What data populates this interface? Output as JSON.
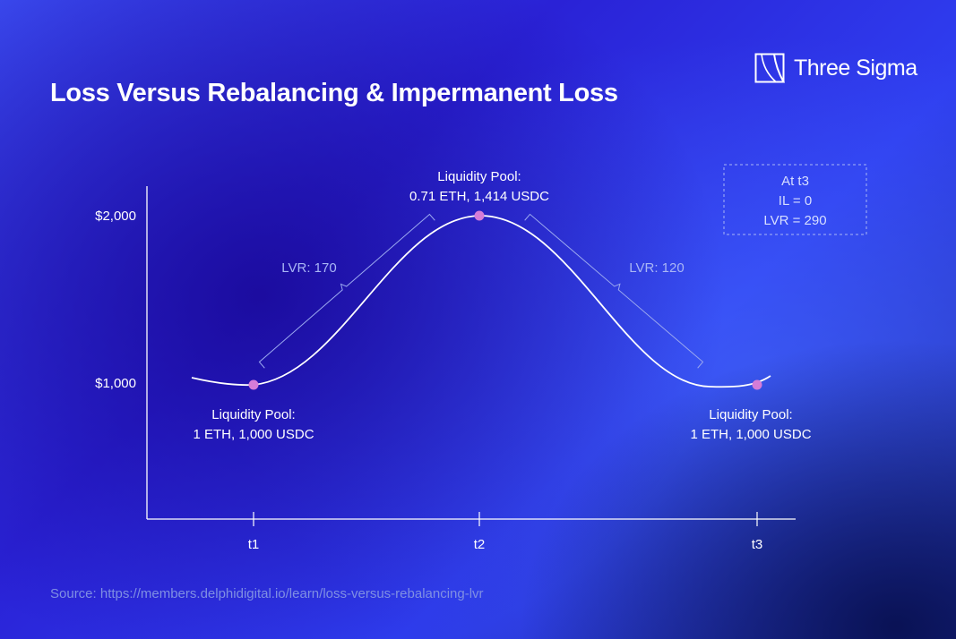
{
  "brand": {
    "name": "Three Sigma",
    "logo_icon": "three-sigma-logo-icon"
  },
  "source_text": "Source: https://members.delphidigital.io/learn/loss-versus-rebalancing-lvr",
  "colors": {
    "curve": "#ffffff",
    "point": "#d57cd8",
    "bracket": "#9aa7ef",
    "note_border": "#a9b6f5"
  },
  "chart_data": {
    "type": "line",
    "title": "Loss Versus Rebalancing & Impermanent Loss",
    "xlabel": "",
    "ylabel": "",
    "grid": false,
    "x_categories": [
      "t1",
      "t2",
      "t3"
    ],
    "y_ticks": [
      {
        "value": 1000,
        "label": "$1,000"
      },
      {
        "value": 2000,
        "label": "$2,000"
      }
    ],
    "series": [
      {
        "points": [
          {
            "x": "t1",
            "y": 1000
          },
          {
            "x": "t2",
            "y": 2000
          },
          {
            "x": "t3",
            "y": 1000
          }
        ]
      }
    ],
    "point_annotations": [
      {
        "x": "t1",
        "lines": [
          "Liquidity Pool:",
          "1 ETH, 1,000 USDC"
        ],
        "placement": "below"
      },
      {
        "x": "t2",
        "lines": [
          "Liquidity Pool:",
          "0.71 ETH, 1,414 USDC"
        ],
        "placement": "above"
      },
      {
        "x": "t3",
        "lines": [
          "Liquidity Pool:",
          "1 ETH, 1,000 USDC"
        ],
        "placement": "below"
      }
    ],
    "segment_annotations": [
      {
        "from": "t1",
        "to": "t2",
        "label": "LVR: 170"
      },
      {
        "from": "t2",
        "to": "t3",
        "label": "LVR: 120"
      }
    ],
    "note": {
      "lines": [
        "At t3",
        "IL = 0",
        "LVR = 290"
      ],
      "placement": "top-right"
    }
  }
}
